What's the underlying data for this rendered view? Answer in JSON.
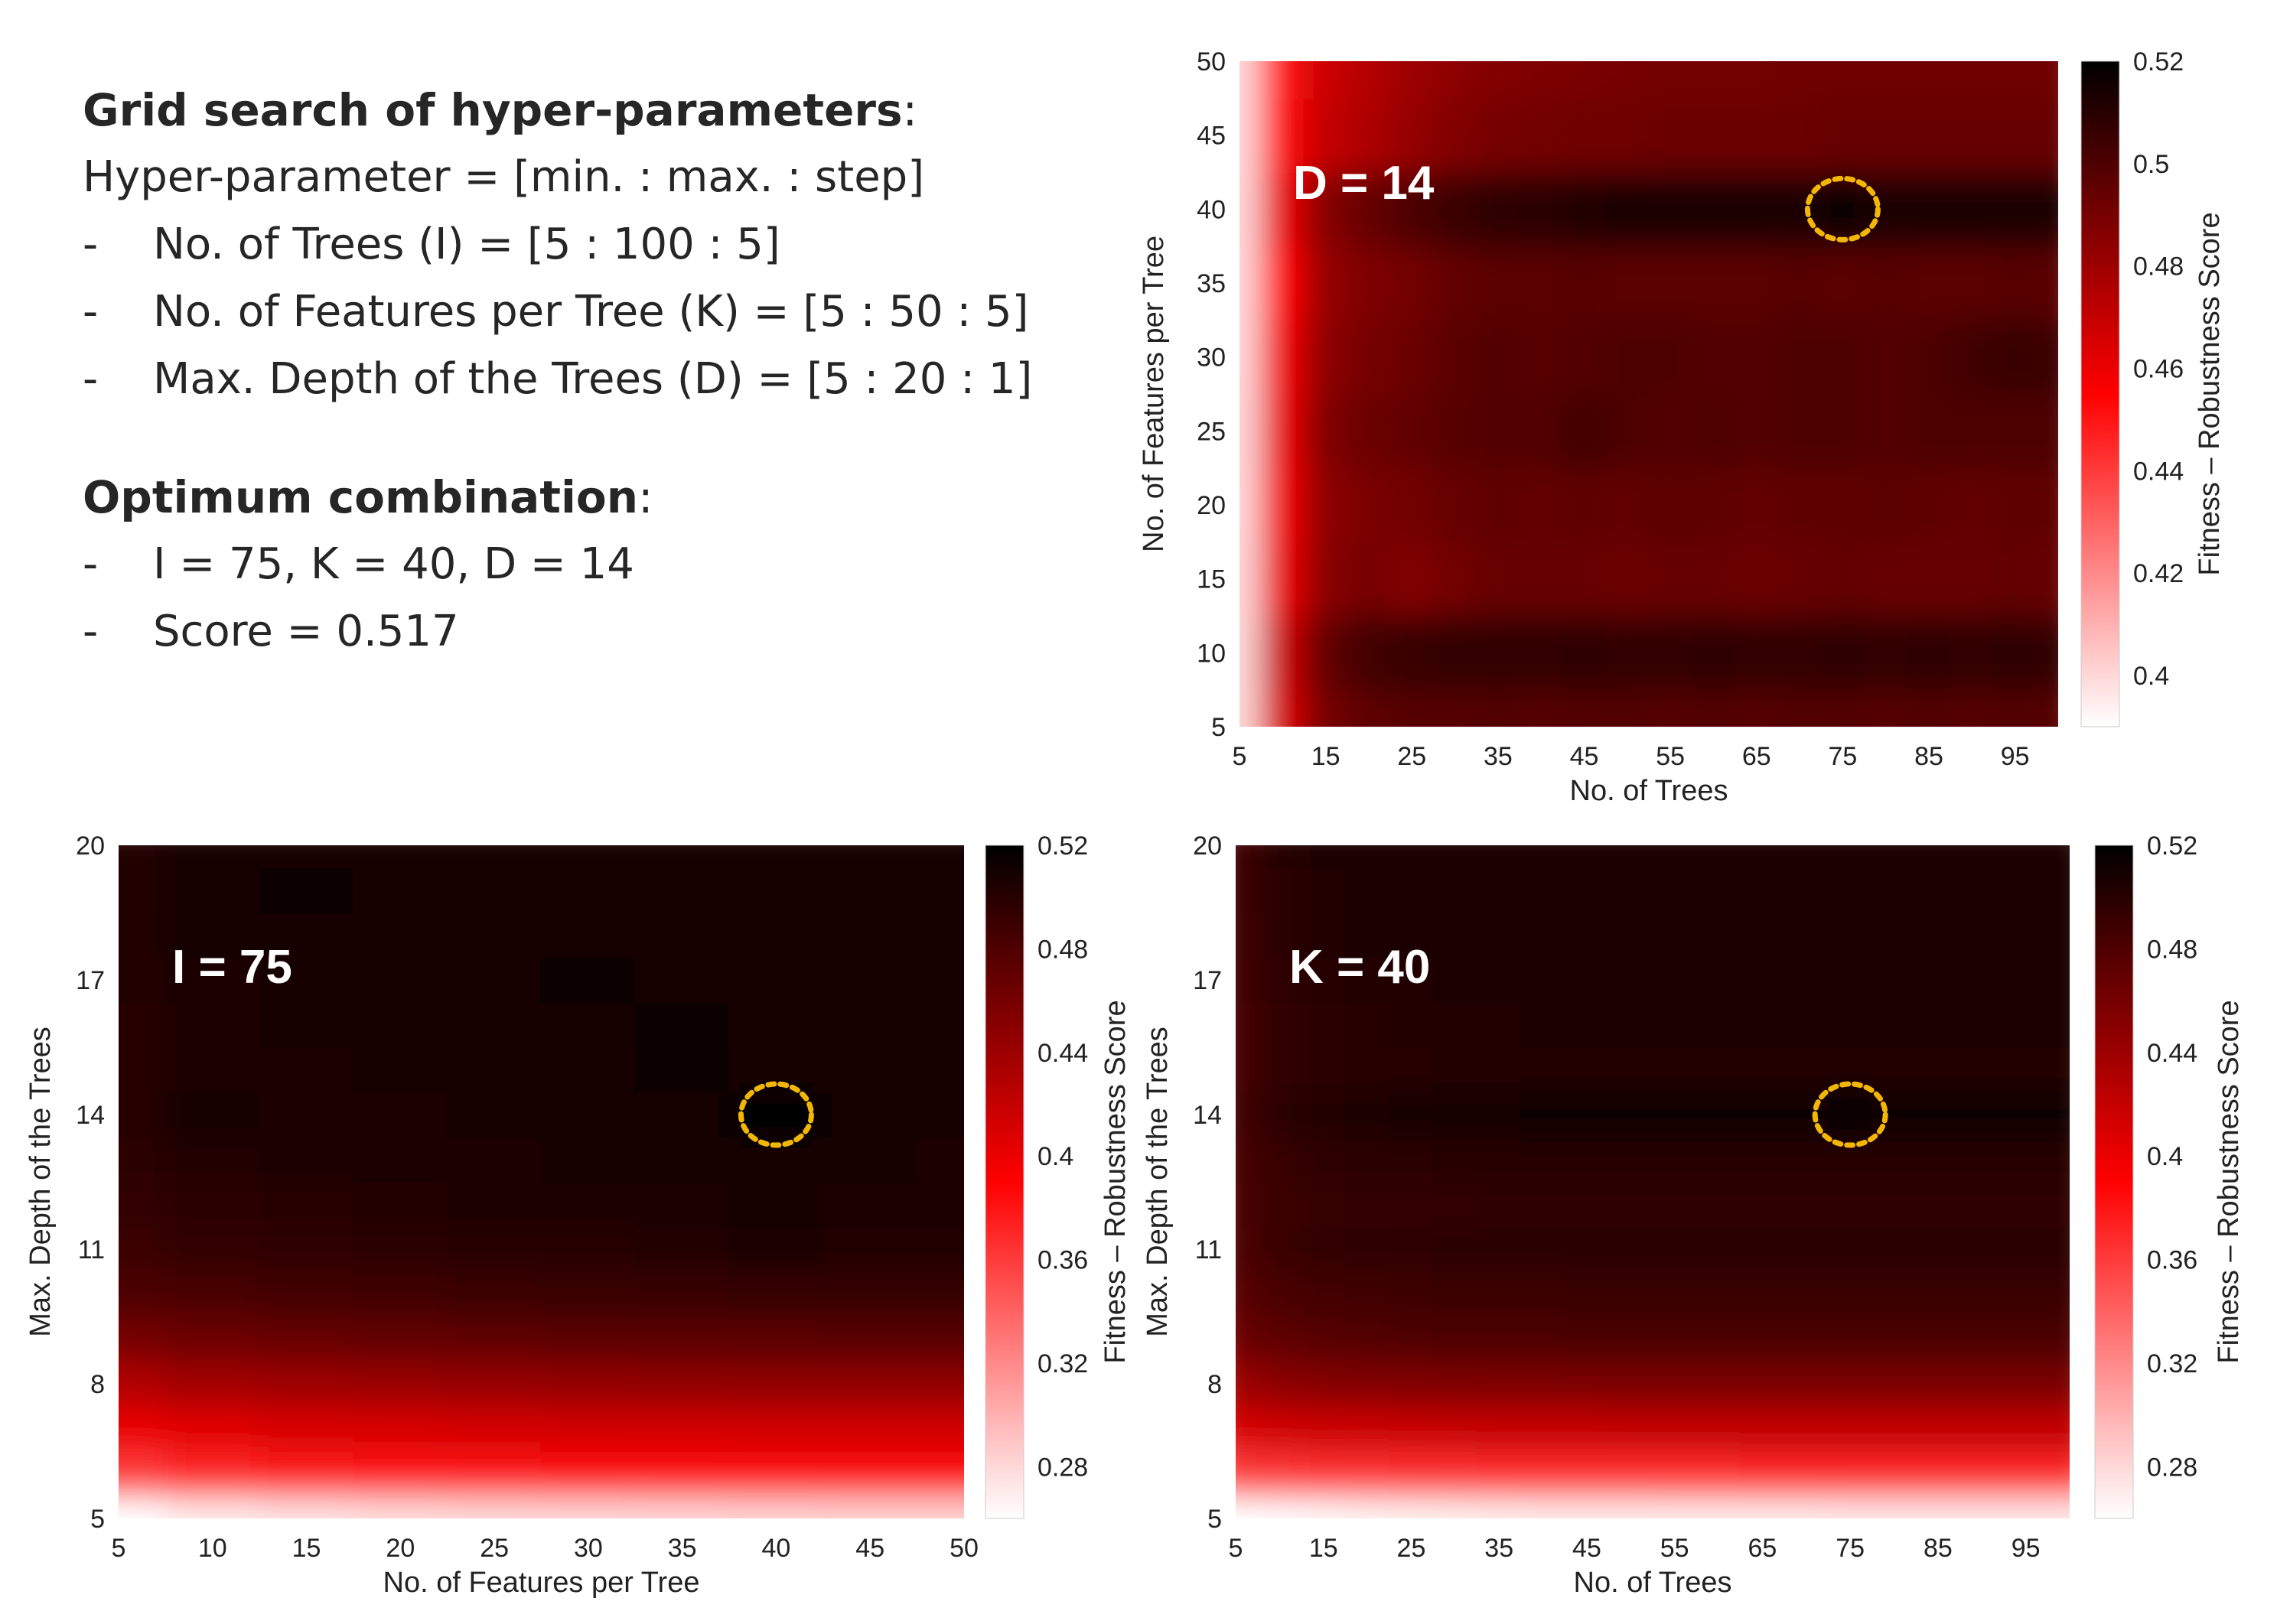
{
  "text_panel": {
    "grid_title": "Grid search of hyper-parameters",
    "grid_title_suffix": ":",
    "format_line": "Hyper-parameter = [min. : max. : step]",
    "params": [
      "No. of Trees (I) = [5 : 100 : 5]",
      "No. of Features per Tree (K) = [5 : 50 : 5]",
      "Max. Depth of the Trees (D) = [5 : 20 : 1]"
    ],
    "opt_title": "Optimum combination",
    "opt_title_suffix": ":",
    "opt_lines": [
      "I = 75, K = 40, D = 14",
      "Score = 0.517"
    ],
    "bullet": "-"
  },
  "colors": {
    "low": "#ffffff",
    "mid": "#ff0000",
    "high": "#000000",
    "marker": "#f2b705",
    "annotation": "#ffffff"
  },
  "chart_data": [
    {
      "type": "heatmap",
      "id": "chart-d14",
      "slice_label": "D = 14",
      "x": [
        5,
        10,
        15,
        20,
        25,
        30,
        35,
        40,
        45,
        50,
        55,
        60,
        65,
        70,
        75,
        80,
        85,
        90,
        95,
        100
      ],
      "y": [
        5,
        10,
        15,
        20,
        25,
        30,
        35,
        40,
        45,
        50
      ],
      "xlim": [
        5,
        100
      ],
      "ylim": [
        5,
        50
      ],
      "xticks": [
        5,
        15,
        25,
        35,
        45,
        55,
        65,
        75,
        85,
        95
      ],
      "yticks": [
        5,
        10,
        15,
        20,
        25,
        30,
        35,
        40,
        45,
        50
      ],
      "xlabel": "No. of Trees",
      "ylabel": "No. of Features per Tree",
      "colorbar_label": "Fitness – Robustness Score",
      "clim": [
        0.39,
        0.52
      ],
      "colorbar_ticks": [
        0.4,
        0.42,
        0.44,
        0.46,
        0.48,
        0.5,
        0.52
      ],
      "optimum": {
        "x": 75,
        "y": 40
      },
      "values": [
        [
          0.4,
          0.465,
          0.49,
          0.496,
          0.498,
          0.498,
          0.499,
          0.498,
          0.499,
          0.499,
          0.498,
          0.499,
          0.498,
          0.499,
          0.499,
          0.498,
          0.499,
          0.498,
          0.499,
          0.498
        ],
        [
          0.4,
          0.468,
          0.495,
          0.503,
          0.506,
          0.507,
          0.507,
          0.507,
          0.508,
          0.507,
          0.507,
          0.508,
          0.507,
          0.507,
          0.508,
          0.507,
          0.508,
          0.507,
          0.508,
          0.507
        ],
        [
          0.4,
          0.46,
          0.485,
          0.49,
          0.487,
          0.491,
          0.494,
          0.494,
          0.494,
          0.493,
          0.494,
          0.494,
          0.493,
          0.494,
          0.495,
          0.494,
          0.494,
          0.494,
          0.495,
          0.494
        ],
        [
          0.4,
          0.458,
          0.484,
          0.489,
          0.491,
          0.494,
          0.496,
          0.495,
          0.496,
          0.495,
          0.497,
          0.496,
          0.495,
          0.496,
          0.496,
          0.497,
          0.496,
          0.495,
          0.496,
          0.496
        ],
        [
          0.4,
          0.46,
          0.487,
          0.493,
          0.495,
          0.498,
          0.499,
          0.499,
          0.503,
          0.5,
          0.499,
          0.5,
          0.499,
          0.5,
          0.5,
          0.499,
          0.5,
          0.5,
          0.5,
          0.5
        ],
        [
          0.4,
          0.458,
          0.484,
          0.49,
          0.493,
          0.497,
          0.499,
          0.498,
          0.499,
          0.5,
          0.5,
          0.499,
          0.499,
          0.5,
          0.5,
          0.499,
          0.5,
          0.504,
          0.506,
          0.505
        ],
        [
          0.4,
          0.455,
          0.482,
          0.488,
          0.491,
          0.495,
          0.497,
          0.497,
          0.498,
          0.497,
          0.497,
          0.497,
          0.497,
          0.498,
          0.497,
          0.498,
          0.497,
          0.497,
          0.498,
          0.497
        ],
        [
          0.4,
          0.46,
          0.486,
          0.494,
          0.5,
          0.505,
          0.508,
          0.509,
          0.511,
          0.512,
          0.512,
          0.512,
          0.512,
          0.513,
          0.517,
          0.512,
          0.512,
          0.512,
          0.513,
          0.512
        ],
        [
          0.4,
          0.452,
          0.47,
          0.476,
          0.482,
          0.487,
          0.49,
          0.491,
          0.492,
          0.492,
          0.493,
          0.493,
          0.493,
          0.493,
          0.494,
          0.494,
          0.494,
          0.494,
          0.494,
          0.494
        ],
        [
          0.4,
          0.45,
          0.468,
          0.474,
          0.48,
          0.484,
          0.487,
          0.488,
          0.489,
          0.49,
          0.491,
          0.491,
          0.491,
          0.492,
          0.492,
          0.492,
          0.492,
          0.492,
          0.492,
          0.492
        ]
      ]
    },
    {
      "type": "heatmap",
      "id": "chart-i75",
      "slice_label": "I = 75",
      "x": [
        5,
        10,
        15,
        20,
        25,
        30,
        35,
        40,
        45,
        50
      ],
      "y": [
        5,
        6,
        7,
        8,
        9,
        10,
        11,
        12,
        13,
        14,
        15,
        16,
        17,
        18,
        19,
        20
      ],
      "xlim": [
        5,
        50
      ],
      "ylim": [
        5,
        20
      ],
      "xticks": [
        5,
        10,
        15,
        20,
        25,
        30,
        35,
        40,
        45,
        50
      ],
      "yticks": [
        5,
        8,
        11,
        14,
        17,
        20
      ],
      "xlabel": "No. of Features per Tree",
      "ylabel": "Max. Depth of the Trees",
      "colorbar_label": "Fitness – Robustness Score",
      "clim": [
        0.26,
        0.52
      ],
      "colorbar_ticks": [
        0.28,
        0.32,
        0.36,
        0.4,
        0.44,
        0.48,
        0.52
      ],
      "optimum": {
        "x": 40,
        "y": 14
      },
      "values": [
        [
          0.26,
          0.27,
          0.275,
          0.278,
          0.28,
          0.281,
          0.282,
          0.283,
          0.284,
          0.284
        ],
        [
          0.36,
          0.37,
          0.375,
          0.378,
          0.38,
          0.382,
          0.383,
          0.384,
          0.384,
          0.385
        ],
        [
          0.4,
          0.405,
          0.41,
          0.41,
          0.412,
          0.413,
          0.413,
          0.414,
          0.414,
          0.414
        ],
        [
          0.43,
          0.437,
          0.44,
          0.442,
          0.444,
          0.445,
          0.446,
          0.447,
          0.447,
          0.447
        ],
        [
          0.46,
          0.465,
          0.468,
          0.47,
          0.472,
          0.473,
          0.474,
          0.474,
          0.475,
          0.475
        ],
        [
          0.48,
          0.483,
          0.486,
          0.488,
          0.49,
          0.491,
          0.492,
          0.493,
          0.493,
          0.493
        ],
        [
          0.49,
          0.494,
          0.497,
          0.499,
          0.5,
          0.501,
          0.502,
          0.506,
          0.503,
          0.503
        ],
        [
          0.495,
          0.498,
          0.501,
          0.503,
          0.504,
          0.505,
          0.506,
          0.509,
          0.507,
          0.506
        ],
        [
          0.498,
          0.502,
          0.505,
          0.506,
          0.507,
          0.508,
          0.508,
          0.51,
          0.508,
          0.507
        ],
        [
          0.5,
          0.508,
          0.507,
          0.507,
          0.508,
          0.509,
          0.51,
          0.517,
          0.51,
          0.509
        ],
        [
          0.5,
          0.505,
          0.507,
          0.508,
          0.508,
          0.51,
          0.512,
          0.511,
          0.509,
          0.508
        ],
        [
          0.501,
          0.506,
          0.508,
          0.509,
          0.51,
          0.511,
          0.512,
          0.51,
          0.509,
          0.509
        ],
        [
          0.502,
          0.507,
          0.509,
          0.51,
          0.511,
          0.513,
          0.511,
          0.51,
          0.51,
          0.509
        ],
        [
          0.502,
          0.508,
          0.51,
          0.511,
          0.511,
          0.511,
          0.51,
          0.51,
          0.51,
          0.509
        ],
        [
          0.503,
          0.509,
          0.512,
          0.511,
          0.51,
          0.51,
          0.51,
          0.509,
          0.509,
          0.509
        ],
        [
          0.503,
          0.508,
          0.511,
          0.511,
          0.51,
          0.51,
          0.51,
          0.509,
          0.51,
          0.509
        ]
      ]
    },
    {
      "type": "heatmap",
      "id": "chart-k40",
      "slice_label": "K = 40",
      "x": [
        5,
        10,
        15,
        20,
        25,
        30,
        35,
        40,
        45,
        50,
        55,
        60,
        65,
        70,
        75,
        80,
        85,
        90,
        95,
        100
      ],
      "y": [
        5,
        6,
        7,
        8,
        9,
        10,
        11,
        12,
        13,
        14,
        15,
        16,
        17,
        18,
        19,
        20
      ],
      "xlim": [
        5,
        100
      ],
      "ylim": [
        5,
        20
      ],
      "xticks": [
        5,
        15,
        25,
        35,
        45,
        55,
        65,
        75,
        85,
        95
      ],
      "yticks": [
        5,
        8,
        11,
        14,
        17,
        20
      ],
      "xlabel": "No. of Trees",
      "ylabel": "Max. Depth of the Trees",
      "colorbar_label": "Fitness – Robustness Score",
      "clim": [
        0.26,
        0.52
      ],
      "colorbar_ticks": [
        0.28,
        0.32,
        0.36,
        0.4,
        0.44,
        0.48,
        0.52
      ],
      "optimum": {
        "x": 75,
        "y": 14
      },
      "values": [
        [
          0.26,
          0.262,
          0.264,
          0.266,
          0.267,
          0.268,
          0.269,
          0.27,
          0.27,
          0.27,
          0.271,
          0.271,
          0.271,
          0.271,
          0.272,
          0.272,
          0.272,
          0.272,
          0.272,
          0.272
        ],
        [
          0.36,
          0.362,
          0.364,
          0.365,
          0.366,
          0.367,
          0.368,
          0.368,
          0.369,
          0.369,
          0.369,
          0.369,
          0.37,
          0.37,
          0.37,
          0.37,
          0.37,
          0.37,
          0.37,
          0.37
        ],
        [
          0.41,
          0.414,
          0.416,
          0.417,
          0.418,
          0.419,
          0.42,
          0.42,
          0.42,
          0.421,
          0.421,
          0.421,
          0.421,
          0.421,
          0.421,
          0.421,
          0.421,
          0.421,
          0.421,
          0.421
        ],
        [
          0.44,
          0.448,
          0.452,
          0.454,
          0.455,
          0.456,
          0.457,
          0.457,
          0.458,
          0.458,
          0.458,
          0.458,
          0.458,
          0.458,
          0.458,
          0.458,
          0.458,
          0.458,
          0.458,
          0.458
        ],
        [
          0.465,
          0.472,
          0.476,
          0.478,
          0.479,
          0.48,
          0.481,
          0.481,
          0.482,
          0.482,
          0.482,
          0.482,
          0.482,
          0.482,
          0.482,
          0.482,
          0.482,
          0.482,
          0.482,
          0.482
        ],
        [
          0.475,
          0.482,
          0.486,
          0.488,
          0.489,
          0.49,
          0.49,
          0.49,
          0.491,
          0.491,
          0.491,
          0.491,
          0.491,
          0.491,
          0.491,
          0.491,
          0.491,
          0.491,
          0.491,
          0.491
        ],
        [
          0.48,
          0.49,
          0.494,
          0.496,
          0.497,
          0.498,
          0.498,
          0.498,
          0.498,
          0.498,
          0.498,
          0.498,
          0.498,
          0.498,
          0.498,
          0.498,
          0.498,
          0.498,
          0.498,
          0.498
        ],
        [
          0.482,
          0.49,
          0.493,
          0.494,
          0.495,
          0.495,
          0.496,
          0.496,
          0.496,
          0.496,
          0.496,
          0.496,
          0.496,
          0.496,
          0.496,
          0.496,
          0.496,
          0.496,
          0.496,
          0.496
        ],
        [
          0.483,
          0.492,
          0.496,
          0.498,
          0.499,
          0.5,
          0.5,
          0.501,
          0.501,
          0.501,
          0.501,
          0.501,
          0.501,
          0.501,
          0.501,
          0.501,
          0.501,
          0.501,
          0.501,
          0.501
        ],
        [
          0.485,
          0.498,
          0.503,
          0.506,
          0.508,
          0.51,
          0.511,
          0.512,
          0.513,
          0.513,
          0.513,
          0.513,
          0.513,
          0.513,
          0.517,
          0.513,
          0.513,
          0.513,
          0.512,
          0.512
        ],
        [
          0.484,
          0.494,
          0.498,
          0.5,
          0.501,
          0.502,
          0.503,
          0.503,
          0.503,
          0.503,
          0.503,
          0.503,
          0.503,
          0.503,
          0.503,
          0.503,
          0.503,
          0.503,
          0.503,
          0.503
        ],
        [
          0.484,
          0.495,
          0.499,
          0.501,
          0.502,
          0.503,
          0.503,
          0.504,
          0.504,
          0.504,
          0.504,
          0.504,
          0.504,
          0.504,
          0.504,
          0.504,
          0.504,
          0.504,
          0.504,
          0.504
        ],
        [
          0.485,
          0.496,
          0.5,
          0.502,
          0.503,
          0.504,
          0.504,
          0.505,
          0.505,
          0.505,
          0.505,
          0.505,
          0.505,
          0.505,
          0.505,
          0.505,
          0.505,
          0.505,
          0.505,
          0.505
        ],
        [
          0.486,
          0.498,
          0.502,
          0.504,
          0.505,
          0.505,
          0.506,
          0.506,
          0.506,
          0.506,
          0.506,
          0.506,
          0.506,
          0.506,
          0.506,
          0.506,
          0.506,
          0.506,
          0.506,
          0.506
        ],
        [
          0.487,
          0.499,
          0.503,
          0.505,
          0.506,
          0.506,
          0.507,
          0.507,
          0.507,
          0.507,
          0.507,
          0.507,
          0.507,
          0.507,
          0.507,
          0.507,
          0.507,
          0.507,
          0.507,
          0.507
        ],
        [
          0.488,
          0.5,
          0.504,
          0.505,
          0.506,
          0.507,
          0.507,
          0.507,
          0.507,
          0.507,
          0.507,
          0.507,
          0.507,
          0.507,
          0.507,
          0.507,
          0.507,
          0.507,
          0.507,
          0.507
        ]
      ]
    }
  ]
}
